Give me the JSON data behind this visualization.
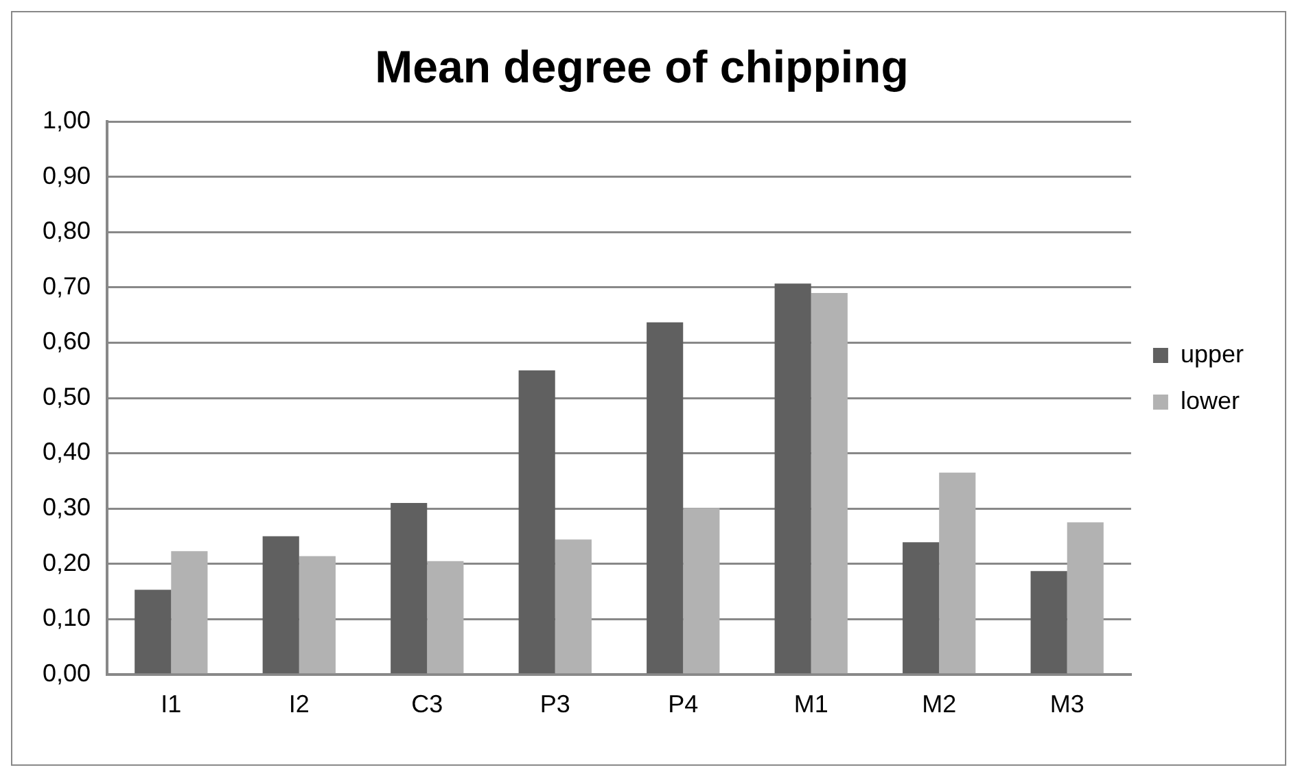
{
  "chart_data": {
    "type": "bar",
    "title": "Mean degree of chipping",
    "categories": [
      "I1",
      "I2",
      "C3",
      "P3",
      "P4",
      "M1",
      "M2",
      "M3"
    ],
    "series": [
      {
        "name": "upper",
        "color": "#606060",
        "values": [
          0.153,
          0.25,
          0.31,
          0.55,
          0.637,
          0.707,
          0.239,
          0.187
        ]
      },
      {
        "name": "lower",
        "color": "#b2b2b2",
        "values": [
          0.223,
          0.214,
          0.205,
          0.244,
          0.301,
          0.69,
          0.365,
          0.275
        ]
      }
    ],
    "ylim": [
      0,
      1
    ],
    "yticks": [
      {
        "value": 0,
        "label": "0,00"
      },
      {
        "value": 0.1,
        "label": "0,10"
      },
      {
        "value": 0.2,
        "label": "0,20"
      },
      {
        "value": 0.3,
        "label": "0,30"
      },
      {
        "value": 0.4,
        "label": "0,40"
      },
      {
        "value": 0.5,
        "label": "0,50"
      },
      {
        "value": 0.6,
        "label": "0,60"
      },
      {
        "value": 0.7,
        "label": "0,70"
      },
      {
        "value": 0.8,
        "label": "0,80"
      },
      {
        "value": 0.9,
        "label": "0,90"
      },
      {
        "value": 1,
        "label": "1,00"
      }
    ],
    "grid": "y",
    "legend": "right"
  }
}
